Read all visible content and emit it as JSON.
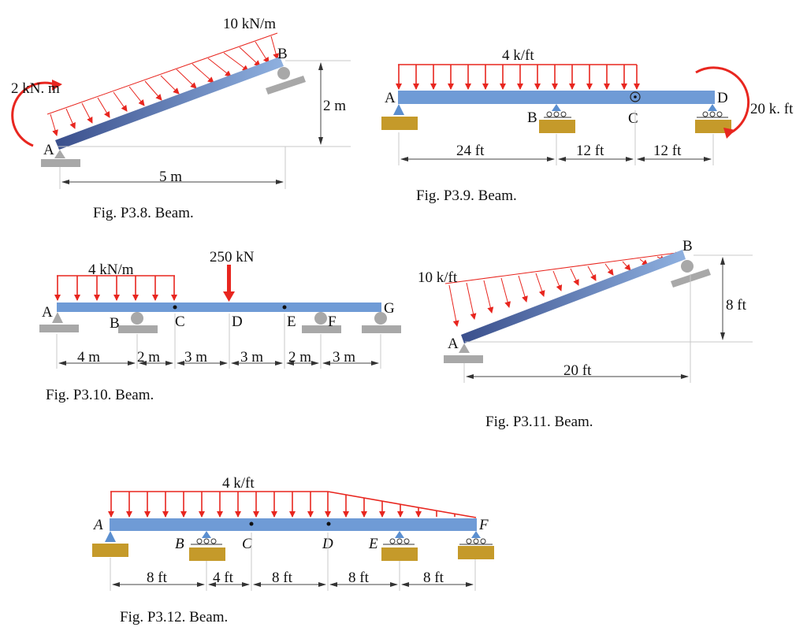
{
  "colors": {
    "beam": "#6f9bd6",
    "beam_dark": "#3a4f8c",
    "load": "#e8261f",
    "support": "#a8a8a8",
    "ground": "#c59a2a",
    "pin": "#5b8fd0"
  },
  "p38": {
    "load": "10 kN/m",
    "moment": "2 kN. m",
    "A": "A",
    "B": "B",
    "height": "2 m",
    "span": "5 m",
    "caption": "Fig.  P3.8. Beam."
  },
  "p39": {
    "load": "4 k/ft",
    "moment": "20 k. ft",
    "A": "A",
    "B": "B",
    "C": "C",
    "D": "D",
    "d1": "24 ft",
    "d2": "12 ft",
    "d3": "12 ft",
    "caption": "Fig.  P3.9. Beam."
  },
  "p310": {
    "load": "4 kN/m",
    "point": "250 kN",
    "A": "A",
    "B": "B",
    "C": "C",
    "D": "D",
    "E": "E",
    "F": "F",
    "G": "G",
    "d1": "4 m",
    "d2": "2 m",
    "d3": "3 m",
    "d4": "3 m",
    "d5": "2 m",
    "d6": "3 m",
    "caption": "Fig.  P3.10. Beam."
  },
  "p311": {
    "load": "10 k/ft",
    "A": "A",
    "B": "B",
    "height": "8 ft",
    "span": "20 ft",
    "caption": "Fig.  P3.11. Beam."
  },
  "p312": {
    "load": "4 k/ft",
    "A": "A",
    "B": "B",
    "C": "C",
    "D": "D",
    "E": "E",
    "F": "F",
    "d1": "8 ft",
    "d2": "4 ft",
    "d3": "8 ft",
    "d4": "8 ft",
    "d5": "8 ft",
    "caption": "Fig.  P3.12. Beam."
  }
}
